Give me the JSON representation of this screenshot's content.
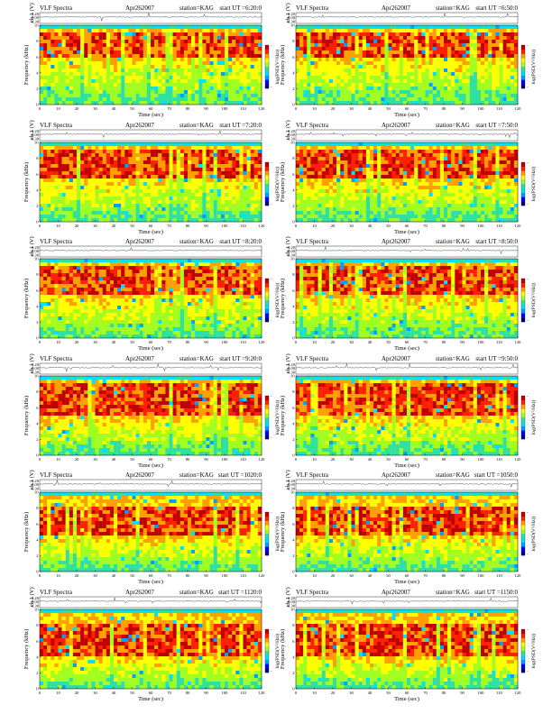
{
  "colormap": [
    "#000080",
    "#0000ff",
    "#00a0ff",
    "#00e0ff",
    "#30e0a0",
    "#a0ff20",
    "#ffff00",
    "#ffa000",
    "#ff2000",
    "#c00000"
  ],
  "axes": {
    "time_label": "Time (sec)",
    "freq_label": "Frequency (kHz)",
    "ch_label": "ch.1 (V)",
    "cb_label": "log(PSD(V²/Hz))",
    "time_ticks": [
      "0",
      "10",
      "20",
      "30",
      "40",
      "50",
      "60",
      "70",
      "80",
      "90",
      "100",
      "110",
      "120"
    ],
    "freq_ticks": [
      "0",
      "2",
      "4",
      "6",
      "8",
      "10"
    ],
    "ch_ticks": [
      "0.20",
      "0.00",
      "-0.30"
    ],
    "cb_ticks": [
      "-",
      "-"
    ]
  },
  "panels": [
    {
      "title": "VLF Spectra",
      "date": "Apr262007",
      "station": "station=KAG",
      "start": "start UT =6:20:0"
    },
    {
      "title": "VLF Spectra",
      "date": "Apr262007",
      "station": "station=KAG",
      "start": "start UT =6:50:0"
    },
    {
      "title": "VLF Spectra",
      "date": "Apr262007",
      "station": "station=KAG",
      "start": "start UT =7:20:0"
    },
    {
      "title": "VLF Spectra",
      "date": "Apr262007",
      "station": "station=KAG",
      "start": "start UT =7:50:0"
    },
    {
      "title": "VLF Spectra",
      "date": "Apr262007",
      "station": "station=KAG",
      "start": "start UT =8:20:0"
    },
    {
      "title": "VLF Spectra",
      "date": "Apr262007",
      "station": "station=KAG",
      "start": "start UT =8:50:0"
    },
    {
      "title": "VLF Spectra",
      "date": "Apr262007",
      "station": "station=KAG",
      "start": "start UT =9:20:0"
    },
    {
      "title": "VLF Spectra",
      "date": "Apr262007",
      "station": "station=KAG",
      "start": "start UT =9:50:0"
    },
    {
      "title": "VLF Spectra",
      "date": "Apr262007",
      "station": "station=KAG",
      "start": "start UT =1020:0"
    },
    {
      "title": "VLF Spectra",
      "date": "Apr262007",
      "station": "station=KAG",
      "start": "start UT =1050:0"
    },
    {
      "title": "VLF Spectra",
      "date": "Apr262007",
      "station": "station=KAG",
      "start": "start UT =1120:0"
    },
    {
      "title": "VLF Spectra",
      "date": "Apr262007",
      "station": "station=KAG",
      "start": "start UT =1150:0"
    }
  ],
  "chart_data": {
    "type": "heatmap",
    "xlabel": "Time (sec)",
    "ylabel": "Frequency (kHz)",
    "xlim": [
      0,
      120
    ],
    "ylim": [
      0,
      10
    ],
    "colorbar_label": "log(PSD(V²/Hz))",
    "waveform_ylabel": "ch.1 (V)",
    "waveform_ylim": [
      -0.3,
      0.2
    ],
    "panels": [
      {
        "start": "6:20:0",
        "intense_band_khz": [
          6,
          9
        ],
        "noise_cutoff_khz": 9.5
      },
      {
        "start": "6:50:0",
        "intense_band_khz": [
          6,
          9
        ],
        "noise_cutoff_khz": 9.5
      },
      {
        "start": "7:20:0",
        "intense_band_khz": [
          5.5,
          9
        ],
        "noise_cutoff_khz": 9.5
      },
      {
        "start": "7:50:0",
        "intense_band_khz": [
          5.5,
          9
        ],
        "noise_cutoff_khz": 9.5
      },
      {
        "start": "8:20:0",
        "intense_band_khz": [
          5.5,
          9
        ],
        "noise_cutoff_khz": 9.5
      },
      {
        "start": "8:50:0",
        "intense_band_khz": [
          5.5,
          9
        ],
        "noise_cutoff_khz": 9.5
      },
      {
        "start": "9:20:0",
        "intense_band_khz": [
          5,
          9
        ],
        "noise_cutoff_khz": 9.5
      },
      {
        "start": "9:50:0",
        "intense_band_khz": [
          5,
          9
        ],
        "noise_cutoff_khz": 9.5
      },
      {
        "start": "1020:0",
        "intense_band_khz": [
          4.5,
          8
        ],
        "noise_cutoff_khz": 9.5
      },
      {
        "start": "1050:0",
        "intense_band_khz": [
          4.5,
          8
        ],
        "noise_cutoff_khz": 9.5
      },
      {
        "start": "1120:0",
        "intense_band_khz": [
          4,
          8
        ],
        "noise_cutoff_khz": 9.5
      },
      {
        "start": "1150:0",
        "intense_band_khz": [
          4,
          8
        ],
        "noise_cutoff_khz": 9.5
      }
    ]
  }
}
